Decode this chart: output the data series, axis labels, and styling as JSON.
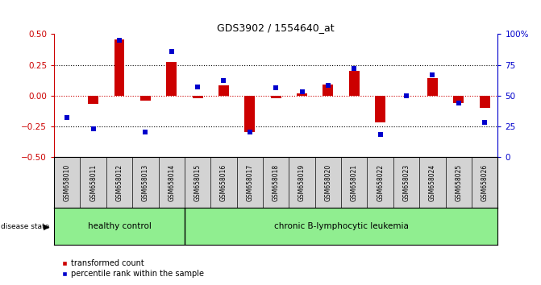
{
  "title": "GDS3902 / 1554640_at",
  "samples": [
    "GSM658010",
    "GSM658011",
    "GSM658012",
    "GSM658013",
    "GSM658014",
    "GSM658015",
    "GSM658016",
    "GSM658017",
    "GSM658018",
    "GSM658019",
    "GSM658020",
    "GSM658021",
    "GSM658022",
    "GSM658023",
    "GSM658024",
    "GSM658025",
    "GSM658026"
  ],
  "red_bars": [
    0.0,
    -0.07,
    0.46,
    -0.04,
    0.27,
    -0.02,
    0.08,
    -0.3,
    -0.02,
    0.02,
    0.09,
    0.2,
    -0.22,
    0.0,
    0.14,
    -0.06,
    -0.1
  ],
  "blue_dots": [
    -0.18,
    -0.27,
    0.45,
    -0.3,
    0.36,
    0.07,
    0.12,
    -0.3,
    0.06,
    0.03,
    0.08,
    0.22,
    -0.32,
    0.0,
    0.17,
    -0.06,
    -0.22
  ],
  "group_labels": [
    "healthy control",
    "chronic B-lymphocytic leukemia"
  ],
  "healthy_count": 5,
  "total_count": 17,
  "ylim": [
    -0.5,
    0.5
  ],
  "yticks_left": [
    -0.5,
    -0.25,
    0.0,
    0.25,
    0.5
  ],
  "yticks_right": [
    0,
    25,
    50,
    75,
    100
  ],
  "right_ylim": [
    0,
    100
  ],
  "bar_color": "#cc0000",
  "dot_color": "#0000cc",
  "background_color": "#ffffff",
  "dotted_lines": [
    -0.25,
    0.0,
    0.25
  ],
  "disease_state_label": "disease state",
  "legend_bar_label": "transformed count",
  "legend_dot_label": "percentile rank within the sample",
  "healthy_color": "#90ee90",
  "leukemia_color": "#90ee90",
  "sample_box_color": "#d3d3d3",
  "bar_width": 0.4,
  "dot_size": 5
}
